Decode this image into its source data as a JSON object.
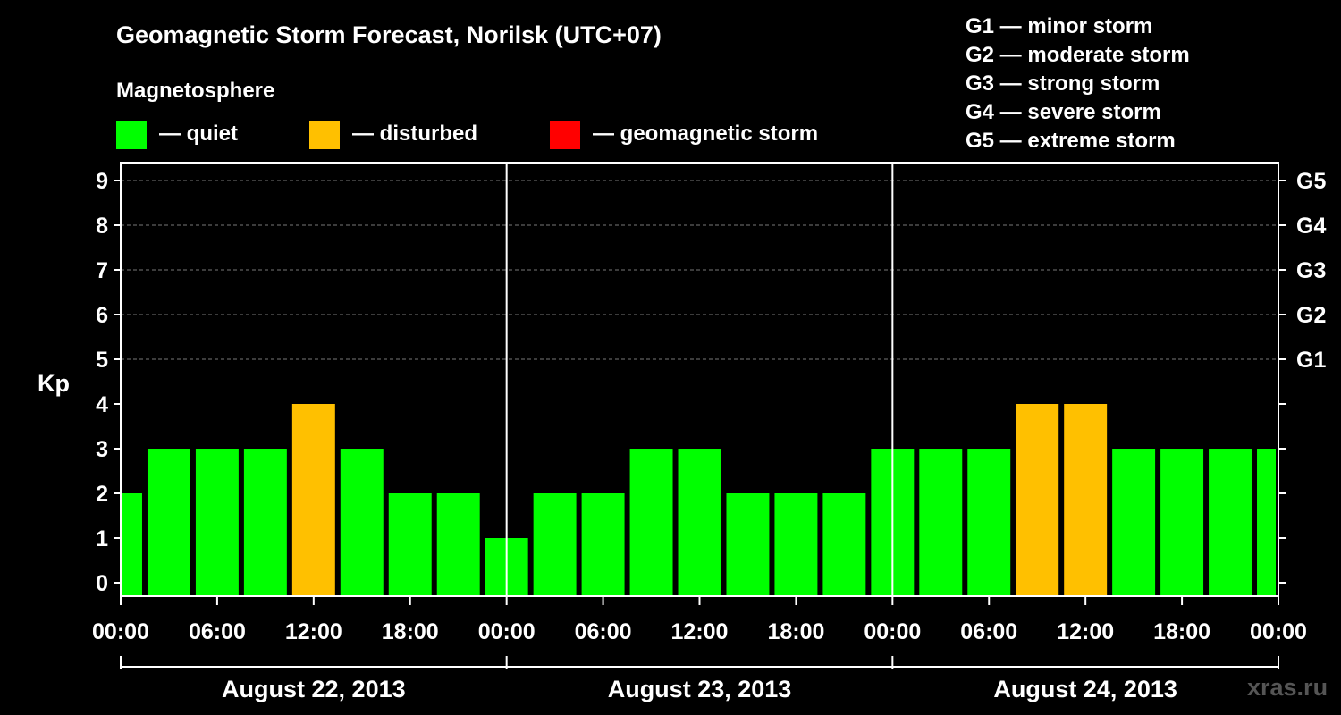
{
  "header": {
    "title": "Geomagnetic Storm Forecast, Norilsk (UTC+07)",
    "legend_heading": "Magnetosphere",
    "legend": [
      {
        "label": "— quiet",
        "color": "#00ff00"
      },
      {
        "label": "— disturbed",
        "color": "#ffc000"
      },
      {
        "label": "— geomagnetic storm",
        "color": "#ff0000"
      }
    ],
    "storm_scale": [
      "G1 — minor storm",
      "G2 — moderate storm",
      "G3 — strong storm",
      "G4 — severe storm",
      "G5 — extreme storm"
    ]
  },
  "watermark": "xras.ru",
  "chart_data": {
    "type": "bar",
    "ylabel": "Kp",
    "ylim": [
      0,
      9
    ],
    "y_ticks": [
      "0",
      "1",
      "2",
      "3",
      "4",
      "5",
      "6",
      "7",
      "8",
      "9"
    ],
    "right_ticks": [
      "G1",
      "G2",
      "G3",
      "G4",
      "G5"
    ],
    "x_tick_labels": [
      "00:00",
      "06:00",
      "12:00",
      "18:00",
      "00:00",
      "06:00",
      "12:00",
      "18:00",
      "00:00",
      "06:00",
      "12:00",
      "18:00",
      "00:00"
    ],
    "days": [
      "August 22, 2013",
      "August 23, 2013",
      "August 24, 2013"
    ],
    "bar_interval_hours": 3,
    "values": [
      2,
      3,
      3,
      3,
      4,
      3,
      2,
      2,
      1,
      2,
      2,
      3,
      3,
      2,
      2,
      2,
      3,
      3,
      3,
      4,
      4,
      3,
      3,
      3,
      3
    ],
    "status": [
      "quiet",
      "quiet",
      "quiet",
      "quiet",
      "disturbed",
      "quiet",
      "quiet",
      "quiet",
      "quiet",
      "quiet",
      "quiet",
      "quiet",
      "quiet",
      "quiet",
      "quiet",
      "quiet",
      "quiet",
      "quiet",
      "quiet",
      "disturbed",
      "disturbed",
      "quiet",
      "quiet",
      "quiet",
      "quiet"
    ],
    "colors": {
      "quiet": "#00ff00",
      "disturbed": "#ffc000",
      "storm": "#ff0000"
    },
    "grid": true
  }
}
